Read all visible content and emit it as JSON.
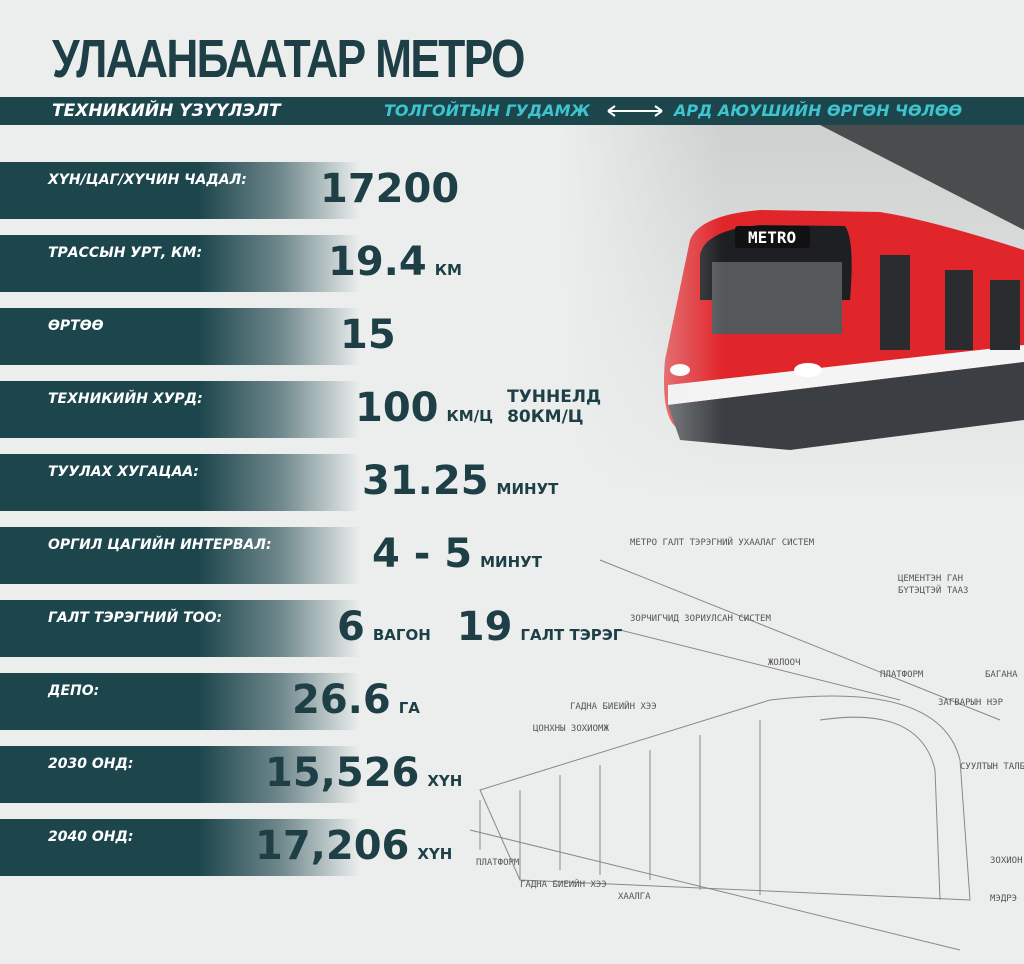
{
  "header": {
    "title": "УЛААНБААТАР МЕТРО",
    "subtitle": "ТЕХНИКИЙН ҮЗҮҮЛЭЛТ",
    "route_from": "ТОЛГОЙТЫН ГУДАМЖ",
    "route_to": "АРД АЮУШИЙН ӨРГӨН ЧӨЛӨӨ"
  },
  "train_sign": "METRO",
  "rows": [
    {
      "label": "ХҮН/ЦАГ/ХҮЧИН ЧАДАЛ:",
      "value": "17200"
    },
    {
      "label": "ТРАССЫН УРТ, КМ:",
      "value": "19.4",
      "unit": "КМ"
    },
    {
      "label": "ӨРТӨӨ",
      "value": "15"
    },
    {
      "label": "ТЕХНИКИЙН ХУРД:",
      "value": "100",
      "unit": "КМ/Ц",
      "note": [
        "ТУННЕЛД",
        "80КМ/Ц"
      ]
    },
    {
      "label": "ТУУЛАХ ХУГАЦАА:",
      "value": "31.25",
      "unit": "МИНУТ"
    },
    {
      "label": "ОРГИЛ ЦАГИЙН ИНТЕРВАЛ:",
      "value": "4 - 5",
      "unit": "МИНУТ"
    },
    {
      "label": "ГАЛТ ТЭРЭГНИЙ ТОО:",
      "value": "6",
      "unit": "ВАГОН",
      "value2": "19",
      "unit2": "ГАЛТ ТЭРЭГ"
    },
    {
      "label": "ДЕПО:",
      "value": "26.6",
      "unit": "ГА"
    },
    {
      "label": "2030 ОНД:",
      "value": "15,526",
      "unit": "ХҮН"
    },
    {
      "label": "2040 ОНД:",
      "value": "17,206",
      "unit": "ХҮН"
    }
  ],
  "diagram": {
    "labels": [
      "МЕТРО ГАЛТ ТЭРЭГНИЙ УХААЛАГ СИСТЕМ",
      "ЦЕМЕНТЭН ГАН",
      "БҮТЭЦТЭЙ ТААЗ",
      "ЗОРЧИГЧИД ЗОРИУЛСАН СИСТЕМ",
      "ЖОЛООЧ",
      "ПЛАТФОРМ",
      "БАГАНА",
      "ЗАГВАРЫН НЭР",
      "ГАДНА БИЕИЙН ХЭЭ",
      "ЦОНХНЫ ЗОХИОМЖ",
      "СУУЛТЫН ТАЛБ",
      "ПЛАТФОРМ",
      "ГАДНА БИЕИЙН ХЭЭ",
      "ХААЛГА",
      "ЗОХИОН",
      "МЭДРЭ"
    ]
  }
}
